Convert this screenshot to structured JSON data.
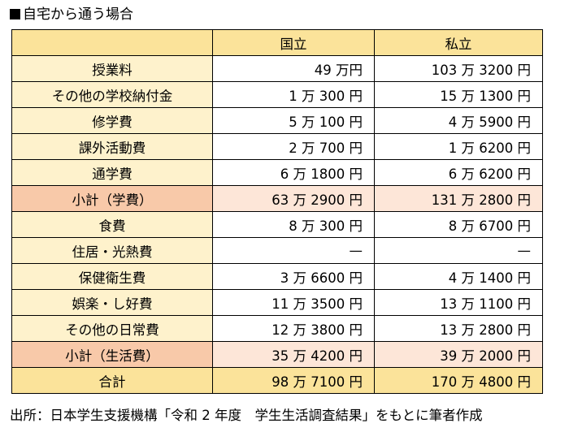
{
  "title": "自宅から通う場合",
  "table": {
    "headers": [
      "",
      "国立",
      "私立"
    ],
    "rows": [
      {
        "label": "授業料",
        "national": "49 万円",
        "private": "103 万 3200 円",
        "kind": "normal"
      },
      {
        "label": "その他の学校納付金",
        "national": "1 万 300 円",
        "private": "15 万 1300 円",
        "kind": "normal"
      },
      {
        "label": "修学費",
        "national": "5 万 100 円",
        "private": "4 万 5900 円",
        "kind": "normal"
      },
      {
        "label": "課外活動費",
        "national": "2 万 700 円",
        "private": "1 万 6200 円",
        "kind": "normal"
      },
      {
        "label": "通学費",
        "national": "6 万 1800 円",
        "private": "6 万 6200 円",
        "kind": "normal"
      },
      {
        "label": "小計（学費）",
        "national": "63 万 2900 円",
        "private": "131 万 2800 円",
        "kind": "subtotal"
      },
      {
        "label": "食費",
        "national": "8 万 300 円",
        "private": "8 万 6700 円",
        "kind": "normal"
      },
      {
        "label": "住居・光熱費",
        "national": "—",
        "private": "—",
        "kind": "normal"
      },
      {
        "label": "保健衛生費",
        "national": "3 万 6600 円",
        "private": "4 万 1400 円",
        "kind": "normal"
      },
      {
        "label": "娯楽・し好費",
        "national": "11 万 3500 円",
        "private": "13 万 1100 円",
        "kind": "normal"
      },
      {
        "label": "その他の日常費",
        "national": "12 万 3800 円",
        "private": "13 万 2800 円",
        "kind": "normal"
      },
      {
        "label": "小計（生活費）",
        "national": "35 万 4200 円",
        "private": "39 万 2000 円",
        "kind": "subtotal"
      },
      {
        "label": "合計",
        "national": "98 万 7100 円",
        "private": "170 万 4800 円",
        "kind": "total"
      }
    ]
  },
  "source": "出所：日本学生支援機構「令和 2 年度　学生生活調査結果」をもとに筆者作成",
  "colors": {
    "header": "#fbe39a",
    "label": "#fef2cc",
    "subtotal_label": "#f8c9a9",
    "subtotal_value": "#fde6d8",
    "total": "#fbe39a"
  }
}
